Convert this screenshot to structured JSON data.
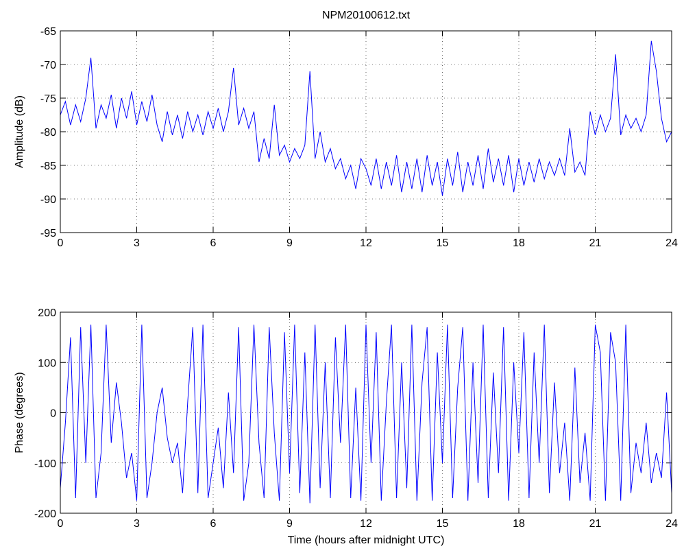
{
  "chart_data": [
    {
      "type": "line",
      "title": "NPM20100612.txt",
      "ylabel": "Amplitude (dB)",
      "xlim": [
        0,
        24
      ],
      "xticks": [
        0,
        3,
        6,
        9,
        12,
        15,
        18,
        21,
        24
      ],
      "ylim": [
        -95,
        -65
      ],
      "yticks": [
        -95,
        -90,
        -85,
        -80,
        -75,
        -70,
        -65
      ],
      "grid": true,
      "color": "#0000ff",
      "x": [
        0,
        0.2,
        0.4,
        0.6,
        0.8,
        1,
        1.2,
        1.4,
        1.6,
        1.8,
        2,
        2.2,
        2.4,
        2.6,
        2.8,
        3,
        3.2,
        3.4,
        3.6,
        3.8,
        4,
        4.2,
        4.4,
        4.6,
        4.8,
        5,
        5.2,
        5.4,
        5.6,
        5.8,
        6,
        6.2,
        6.4,
        6.6,
        6.8,
        7,
        7.2,
        7.4,
        7.6,
        7.8,
        8,
        8.2,
        8.4,
        8.6,
        8.8,
        9,
        9.2,
        9.4,
        9.6,
        9.8,
        10,
        10.2,
        10.4,
        10.6,
        10.8,
        11,
        11.2,
        11.4,
        11.6,
        11.8,
        12,
        12.2,
        12.4,
        12.6,
        12.8,
        13,
        13.2,
        13.4,
        13.6,
        13.8,
        14,
        14.2,
        14.4,
        14.6,
        14.8,
        15,
        15.2,
        15.4,
        15.6,
        15.8,
        16,
        16.2,
        16.4,
        16.6,
        16.8,
        17,
        17.2,
        17.4,
        17.6,
        17.8,
        18,
        18.2,
        18.4,
        18.6,
        18.8,
        19,
        19.2,
        19.4,
        19.6,
        19.8,
        20,
        20.2,
        20.4,
        20.6,
        20.8,
        21,
        21.2,
        21.4,
        21.6,
        21.8,
        22,
        22.2,
        22.4,
        22.6,
        22.8,
        23,
        23.2,
        23.4,
        23.6,
        23.8,
        24
      ],
      "values": [
        -77.5,
        -75.5,
        -79,
        -76,
        -78.5,
        -75,
        -69,
        -79.5,
        -76,
        -78,
        -74.5,
        -79.5,
        -75,
        -78,
        -74,
        -79,
        -75.5,
        -78.5,
        -74.5,
        -79,
        -81.5,
        -77,
        -80.5,
        -77.5,
        -81,
        -77,
        -80,
        -77.5,
        -80.5,
        -77,
        -79.5,
        -76.5,
        -80,
        -77,
        -70.5,
        -79,
        -76.5,
        -79.5,
        -77,
        -84.5,
        -81,
        -84,
        -76,
        -83.5,
        -82,
        -84.5,
        -82.5,
        -84,
        -82,
        -71,
        -84,
        -80,
        -84.5,
        -82.5,
        -85.5,
        -84,
        -87,
        -85,
        -88.5,
        -84,
        -85.5,
        -88,
        -84,
        -88.5,
        -84.5,
        -88,
        -83.5,
        -89,
        -84.5,
        -88.5,
        -84,
        -89,
        -83.5,
        -88,
        -84.5,
        -89.5,
        -84,
        -88,
        -83,
        -89,
        -84.5,
        -88,
        -83.5,
        -88.5,
        -82.5,
        -87.5,
        -84,
        -88,
        -83.5,
        -89,
        -84,
        -88,
        -84.5,
        -87.5,
        -84,
        -87,
        -84.5,
        -86.5,
        -84,
        -86.5,
        -79.5,
        -86,
        -84.5,
        -86.5,
        -77,
        -80.5,
        -77.5,
        -80,
        -78,
        -68.5,
        -80.5,
        -77.5,
        -79.5,
        -78,
        -80,
        -77.5,
        -66.5,
        -71,
        -78,
        -81.5,
        -80
      ]
    },
    {
      "type": "line",
      "ylabel": "Phase (degrees)",
      "xlabel": "Time (hours after midnight UTC)",
      "xlim": [
        0,
        24
      ],
      "xticks": [
        0,
        3,
        6,
        9,
        12,
        15,
        18,
        21,
        24
      ],
      "ylim": [
        -200,
        200
      ],
      "yticks": [
        -200,
        -100,
        0,
        100,
        200
      ],
      "grid": true,
      "color": "#0000ff",
      "x": [
        0,
        0.2,
        0.4,
        0.6,
        0.8,
        1,
        1.2,
        1.4,
        1.6,
        1.8,
        2,
        2.2,
        2.4,
        2.6,
        2.8,
        3,
        3.2,
        3.4,
        3.6,
        3.8,
        4,
        4.2,
        4.4,
        4.6,
        4.8,
        5,
        5.2,
        5.4,
        5.6,
        5.8,
        6,
        6.2,
        6.4,
        6.6,
        6.8,
        7,
        7.2,
        7.4,
        7.6,
        7.8,
        8,
        8.2,
        8.4,
        8.6,
        8.8,
        9,
        9.2,
        9.4,
        9.6,
        9.8,
        10,
        10.2,
        10.4,
        10.6,
        10.8,
        11,
        11.2,
        11.4,
        11.6,
        11.8,
        12,
        12.2,
        12.4,
        12.6,
        12.8,
        13,
        13.2,
        13.4,
        13.6,
        13.8,
        14,
        14.2,
        14.4,
        14.6,
        14.8,
        15,
        15.2,
        15.4,
        15.6,
        15.8,
        16,
        16.2,
        16.4,
        16.6,
        16.8,
        17,
        17.2,
        17.4,
        17.6,
        17.8,
        18,
        18.2,
        18.4,
        18.6,
        18.8,
        19,
        19.2,
        19.4,
        19.6,
        19.8,
        20,
        20.2,
        20.4,
        20.6,
        20.8,
        21,
        21.2,
        21.4,
        21.6,
        21.8,
        22,
        22.2,
        22.4,
        22.6,
        22.8,
        23,
        23.2,
        23.4,
        23.6,
        23.8,
        24
      ],
      "values": [
        -150,
        -20,
        150,
        -170,
        170,
        -100,
        175,
        -170,
        -80,
        175,
        -60,
        60,
        -20,
        -130,
        -80,
        -175,
        175,
        -170,
        -100,
        0,
        50,
        -50,
        -100,
        -60,
        -160,
        20,
        170,
        -160,
        175,
        -170,
        -100,
        -30,
        -150,
        40,
        -120,
        170,
        -175,
        -100,
        175,
        -60,
        -170,
        170,
        -40,
        -175,
        160,
        -120,
        175,
        -160,
        120,
        -180,
        175,
        -150,
        100,
        -170,
        150,
        -60,
        175,
        -170,
        50,
        -175,
        175,
        -100,
        160,
        -175,
        20,
        175,
        -170,
        100,
        -150,
        175,
        -175,
        60,
        170,
        -175,
        120,
        -100,
        175,
        -170,
        50,
        170,
        -175,
        100,
        -140,
        175,
        -170,
        80,
        -120,
        170,
        -175,
        100,
        -80,
        160,
        -170,
        120,
        -100,
        175,
        -160,
        60,
        -120,
        -20,
        -175,
        90,
        -140,
        -40,
        -175,
        175,
        120,
        -175,
        160,
        100,
        -175,
        175,
        -160,
        -60,
        -120,
        -20,
        -140,
        -80,
        -130,
        40,
        -160
      ]
    }
  ]
}
